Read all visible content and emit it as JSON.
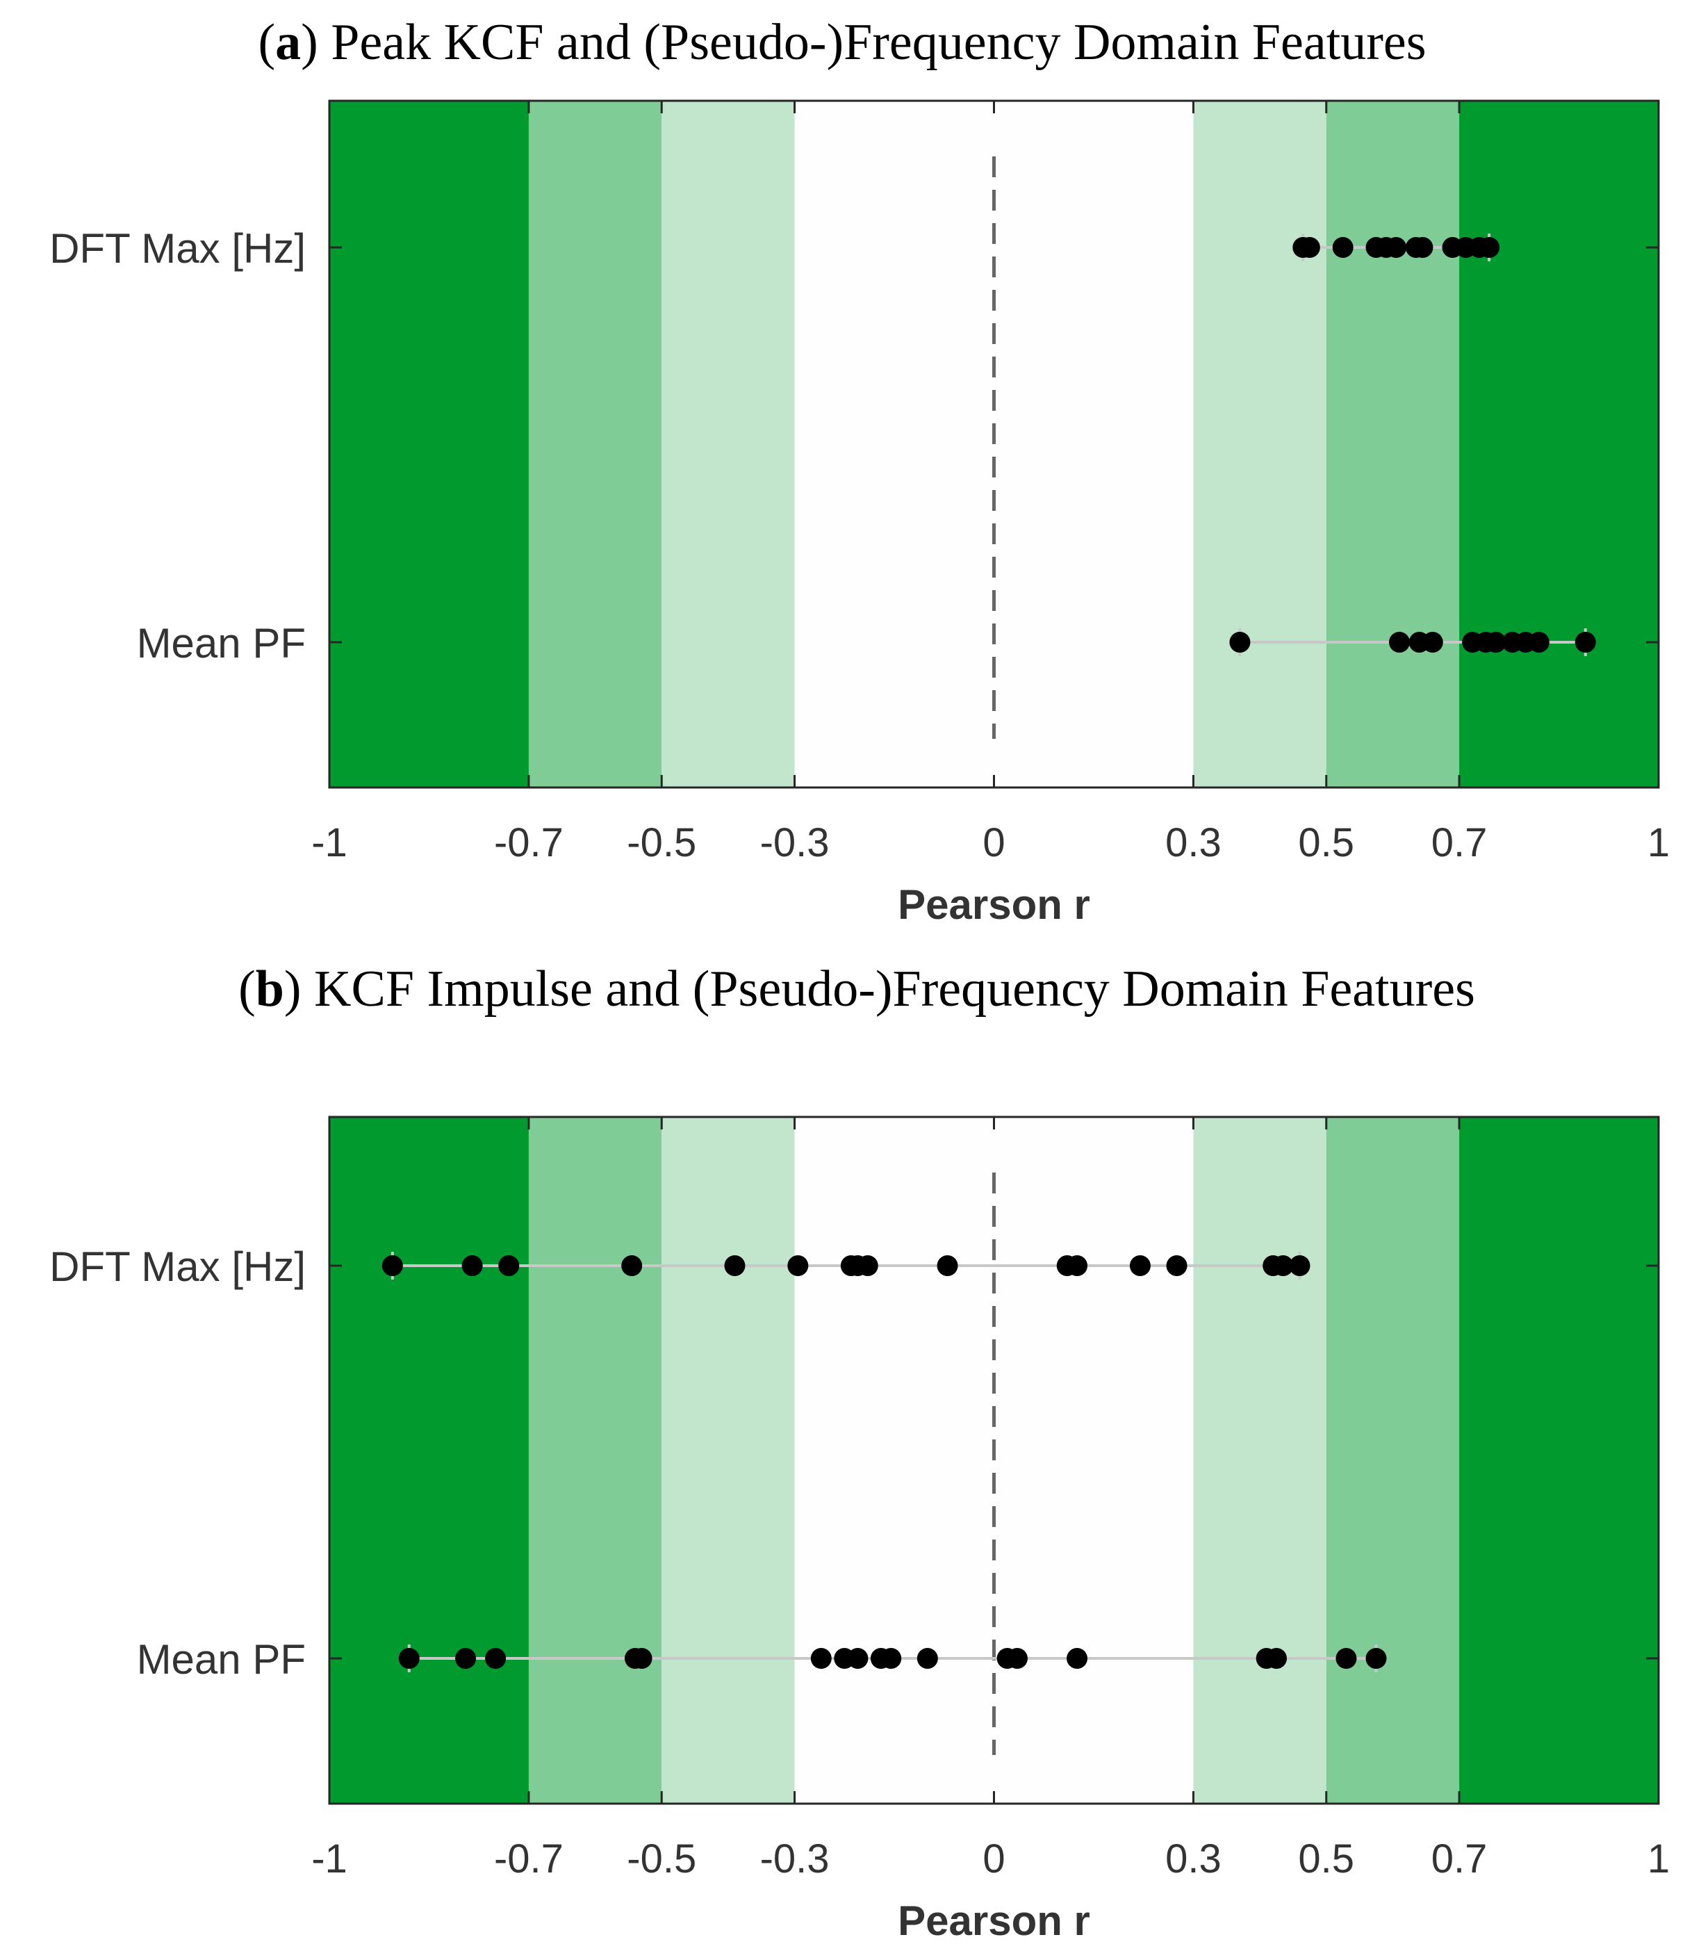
{
  "chart_data": [
    {
      "type": "scatter",
      "title": "(a) Peak KCF and (Pseudo-)Frequency Domain Features",
      "title_letter": "a",
      "title_text": "Peak KCF and (Pseudo-)Frequency Domain Features",
      "xlabel": "Pearson r",
      "xlim": [
        -1,
        1
      ],
      "xticks": [
        -1,
        -0.7,
        -0.5,
        -0.3,
        0,
        0.3,
        0.5,
        0.7,
        1
      ],
      "xtick_labels": [
        "-1",
        "-0.7",
        "-0.5",
        "-0.3",
        "0",
        "0.3",
        "0.5",
        "0.7",
        "1"
      ],
      "bands": [
        {
          "from": -1,
          "to": -0.7,
          "color": "#009a2f"
        },
        {
          "from": -0.7,
          "to": -0.5,
          "color": "#80cc97"
        },
        {
          "from": -0.5,
          "to": -0.3,
          "color": "#c2e6cc"
        },
        {
          "from": -0.3,
          "to": 0.3,
          "color": "#fdfefd"
        },
        {
          "from": 0.3,
          "to": 0.5,
          "color": "#c2e6cc"
        },
        {
          "from": 0.5,
          "to": 0.7,
          "color": "#80cc97"
        },
        {
          "from": 0.7,
          "to": 1,
          "color": "#009a2f"
        }
      ],
      "zero_line": "dashed",
      "series": [
        {
          "name": "DFT Max [Hz]",
          "values": [
            0.465,
            0.475,
            0.525,
            0.575,
            0.59,
            0.605,
            0.635,
            0.645,
            0.69,
            0.71,
            0.73,
            0.745
          ]
        },
        {
          "name": "Mean PF",
          "values": [
            0.37,
            0.61,
            0.64,
            0.66,
            0.72,
            0.74,
            0.755,
            0.78,
            0.8,
            0.82,
            0.89
          ]
        }
      ]
    },
    {
      "type": "scatter",
      "title": "(b) KCF Impulse and (Pseudo-)Frequency Domain Features",
      "title_letter": "b",
      "title_text": "KCF Impulse and (Pseudo-)Frequency Domain Features",
      "xlabel": "Pearson r",
      "xlim": [
        -1,
        1
      ],
      "xticks": [
        -1,
        -0.7,
        -0.5,
        -0.3,
        0,
        0.3,
        0.5,
        0.7,
        1
      ],
      "xtick_labels": [
        "-1",
        "-0.7",
        "-0.5",
        "-0.3",
        "0",
        "0.3",
        "0.5",
        "0.7",
        "1"
      ],
      "bands": [
        {
          "from": -1,
          "to": -0.7,
          "color": "#009a2f"
        },
        {
          "from": -0.7,
          "to": -0.5,
          "color": "#80cc97"
        },
        {
          "from": -0.5,
          "to": -0.3,
          "color": "#c2e6cc"
        },
        {
          "from": -0.3,
          "to": 0.3,
          "color": "#fdfefd"
        },
        {
          "from": 0.3,
          "to": 0.5,
          "color": "#c2e6cc"
        },
        {
          "from": 0.5,
          "to": 0.7,
          "color": "#80cc97"
        },
        {
          "from": 0.7,
          "to": 1,
          "color": "#009a2f"
        }
      ],
      "zero_line": "dashed",
      "series": [
        {
          "name": "DFT Max [Hz]",
          "values": [
            -0.905,
            -0.785,
            -0.73,
            -0.545,
            -0.39,
            -0.295,
            -0.215,
            -0.205,
            -0.19,
            -0.07,
            0.11,
            0.125,
            0.22,
            0.275,
            0.42,
            0.435,
            0.46
          ]
        },
        {
          "name": "Mean PF",
          "values": [
            -0.88,
            -0.795,
            -0.75,
            -0.54,
            -0.53,
            -0.26,
            -0.225,
            -0.205,
            -0.17,
            -0.155,
            -0.1,
            0.02,
            0.035,
            0.125,
            0.41,
            0.425,
            0.53,
            0.575
          ]
        }
      ]
    }
  ],
  "colors": {
    "marker": "#000000",
    "range_line": "#c8c8c8",
    "axis": "#262626",
    "zero_line": "#666666"
  }
}
